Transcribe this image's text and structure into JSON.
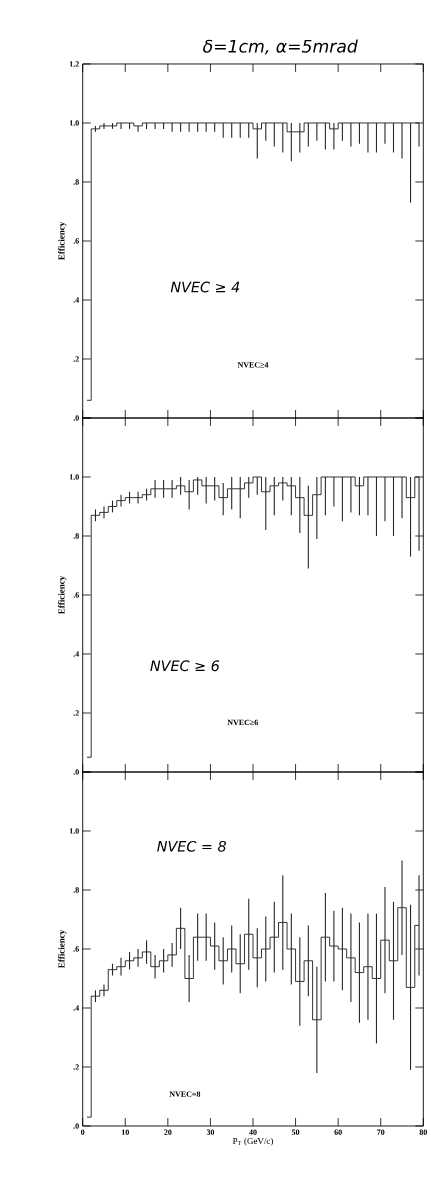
{
  "chart_data": [
    {
      "type": "step",
      "title": "δ=1cm, α=5mrad",
      "ylabel": "Efficiency",
      "annotations": [
        "NVEC ≥ 4",
        "NVEC≥4"
      ],
      "x": [
        1,
        3,
        5,
        7,
        9,
        11,
        13,
        15,
        17,
        19,
        21,
        23,
        25,
        27,
        29,
        31,
        33,
        35,
        37,
        39,
        41,
        43,
        45,
        47,
        49,
        51,
        53,
        55,
        57,
        59,
        61,
        63,
        65,
        67,
        69,
        71,
        73,
        75,
        77,
        79
      ],
      "values": [
        0.06,
        0.98,
        0.99,
        0.99,
        1.0,
        1.0,
        0.99,
        1.0,
        1.0,
        1.0,
        1.0,
        1.0,
        1.0,
        1.0,
        1.0,
        1.0,
        1.0,
        1.0,
        1.0,
        1.0,
        0.98,
        1.0,
        1.0,
        1.0,
        0.97,
        0.97,
        1.0,
        1.0,
        1.0,
        0.98,
        1.0,
        1.0,
        1.0,
        1.0,
        1.0,
        1.0,
        1.0,
        1.0,
        1.0,
        1.0
      ],
      "errors": [
        null,
        [
          0.97,
          0.99
        ],
        [
          0.98,
          1.0
        ],
        [
          0.98,
          1.0
        ],
        [
          0.98,
          1.0
        ],
        [
          0.98,
          1.0
        ],
        [
          0.97,
          0.99
        ],
        [
          0.98,
          1.0
        ],
        [
          0.98,
          1.0
        ],
        [
          0.98,
          1.0
        ],
        [
          0.97,
          1.0
        ],
        [
          0.97,
          1.0
        ],
        [
          0.97,
          1.0
        ],
        [
          0.97,
          1.0
        ],
        [
          0.97,
          1.0
        ],
        [
          0.97,
          1.0
        ],
        [
          0.95,
          1.0
        ],
        [
          0.95,
          1.0
        ],
        [
          0.95,
          1.0
        ],
        [
          0.95,
          1.0
        ],
        [
          0.88,
          1.0
        ],
        [
          0.94,
          1.0
        ],
        [
          0.92,
          1.0
        ],
        [
          0.9,
          1.0
        ],
        [
          0.87,
          1.0
        ],
        [
          0.9,
          1.0
        ],
        [
          0.92,
          1.0
        ],
        [
          0.94,
          1.0
        ],
        [
          0.91,
          1.0
        ],
        [
          0.91,
          1.0
        ],
        [
          0.94,
          1.0
        ],
        [
          0.92,
          1.0
        ],
        [
          0.93,
          1.0
        ],
        [
          0.9,
          1.0
        ],
        [
          0.9,
          1.0
        ],
        [
          0.93,
          1.0
        ],
        [
          0.9,
          1.0
        ],
        [
          0.88,
          1.0
        ],
        [
          0.73,
          1.0
        ],
        [
          0.92,
          1.0
        ]
      ],
      "xlim": [
        0,
        80
      ],
      "ylim": [
        0,
        1.2
      ],
      "xticks": [
        0,
        10,
        20,
        30,
        40,
        50,
        60,
        70,
        80
      ],
      "yticks": [
        {
          "value": 0,
          "label": ".0"
        },
        {
          "value": 0.2,
          "label": ".2"
        },
        {
          "value": 0.4,
          "label": ".4"
        },
        {
          "value": 0.6,
          "label": ".6"
        },
        {
          "value": 0.8,
          "label": ".8"
        },
        {
          "value": 1.0,
          "label": "1.0"
        },
        {
          "value": 1.2,
          "label": "1.2"
        }
      ],
      "tick_labels": "y"
    },
    {
      "type": "step",
      "ylabel": "Efficiency",
      "annotations": [
        "NVEC ≥ 6",
        "NVEC≥6"
      ],
      "x": [
        1,
        3,
        5,
        7,
        9,
        11,
        13,
        15,
        17,
        19,
        21,
        23,
        25,
        27,
        29,
        31,
        33,
        35,
        37,
        39,
        41,
        43,
        45,
        47,
        49,
        51,
        53,
        55,
        57,
        59,
        61,
        63,
        65,
        67,
        69,
        71,
        73,
        75,
        77,
        79
      ],
      "values": [
        0.05,
        0.87,
        0.88,
        0.9,
        0.92,
        0.93,
        0.93,
        0.94,
        0.96,
        0.96,
        0.96,
        0.97,
        0.95,
        0.99,
        0.97,
        0.97,
        0.93,
        0.96,
        0.96,
        0.98,
        1.0,
        0.95,
        0.97,
        0.98,
        0.97,
        0.93,
        0.87,
        0.94,
        1.0,
        1.0,
        1.0,
        1.0,
        0.97,
        1.0,
        1.0,
        1.0,
        1.0,
        1.0,
        0.93,
        1.0
      ],
      "errors": [
        null,
        [
          0.85,
          0.89
        ],
        [
          0.86,
          0.9
        ],
        [
          0.88,
          0.92
        ],
        [
          0.9,
          0.94
        ],
        [
          0.91,
          0.95
        ],
        [
          0.91,
          0.95
        ],
        [
          0.92,
          0.96
        ],
        [
          0.93,
          0.99
        ],
        [
          0.93,
          0.99
        ],
        [
          0.93,
          0.99
        ],
        [
          0.94,
          1.0
        ],
        [
          0.89,
          0.99
        ],
        [
          0.94,
          1.0
        ],
        [
          0.91,
          1.0
        ],
        [
          0.92,
          1.0
        ],
        [
          0.87,
          0.98
        ],
        [
          0.89,
          1.0
        ],
        [
          0.86,
          1.0
        ],
        [
          0.93,
          1.0
        ],
        [
          0.94,
          1.0
        ],
        [
          0.82,
          1.0
        ],
        [
          0.87,
          1.0
        ],
        [
          0.92,
          1.0
        ],
        [
          0.87,
          1.0
        ],
        [
          0.81,
          1.0
        ],
        [
          0.69,
          0.97
        ],
        [
          0.79,
          1.0
        ],
        [
          0.87,
          1.0
        ],
        [
          0.9,
          1.0
        ],
        [
          0.85,
          1.0
        ],
        [
          0.88,
          1.0
        ],
        [
          0.87,
          1.0
        ],
        [
          0.87,
          1.0
        ],
        [
          0.8,
          1.0
        ],
        [
          0.85,
          1.0
        ],
        [
          0.8,
          1.0
        ],
        [
          0.86,
          1.0
        ],
        [
          0.73,
          1.0
        ],
        [
          0.75,
          1.0
        ]
      ],
      "xlim": [
        0,
        80
      ],
      "ylim": [
        0,
        1.2
      ],
      "xticks": [
        0,
        10,
        20,
        30,
        40,
        50,
        60,
        70,
        80
      ],
      "yticks": [
        {
          "value": 0,
          "label": ".0"
        },
        {
          "value": 0.2,
          "label": ".2"
        },
        {
          "value": 0.4,
          "label": ".4"
        },
        {
          "value": 0.6,
          "label": ".6"
        },
        {
          "value": 0.8,
          "label": ".8"
        },
        {
          "value": 1.0,
          "label": "1.0"
        },
        {
          "value": 1.2,
          "label": null
        }
      ],
      "tick_labels": "y"
    },
    {
      "type": "step",
      "ylabel": "Efficiency",
      "xlabel": "P$_{T}$ (GeV/c)",
      "annotations": [
        "NVEC = 8",
        "NVEC=8"
      ],
      "x": [
        1,
        3,
        5,
        7,
        9,
        11,
        13,
        15,
        17,
        19,
        21,
        23,
        25,
        27,
        29,
        31,
        33,
        35,
        37,
        39,
        41,
        43,
        45,
        47,
        49,
        51,
        53,
        55,
        57,
        59,
        61,
        63,
        65,
        67,
        69,
        71,
        73,
        75,
        77,
        79
      ],
      "values": [
        0.03,
        0.44,
        0.46,
        0.53,
        0.54,
        0.56,
        0.57,
        0.59,
        0.54,
        0.56,
        0.58,
        0.67,
        0.5,
        0.64,
        0.64,
        0.61,
        0.56,
        0.6,
        0.55,
        0.65,
        0.57,
        0.6,
        0.64,
        0.69,
        0.6,
        0.49,
        0.56,
        0.36,
        0.64,
        0.61,
        0.6,
        0.57,
        0.52,
        0.54,
        0.5,
        0.63,
        0.56,
        0.74,
        0.47,
        0.68
      ],
      "errors": [
        null,
        0.02,
        0.02,
        0.02,
        0.03,
        0.03,
        0.03,
        0.04,
        0.04,
        0.04,
        0.04,
        0.07,
        0.08,
        0.08,
        0.08,
        0.08,
        0.08,
        0.08,
        0.1,
        0.12,
        0.1,
        0.11,
        0.12,
        0.16,
        0.12,
        0.15,
        0.12,
        0.18,
        0.15,
        0.12,
        0.14,
        0.15,
        0.17,
        0.18,
        0.22,
        0.18,
        0.2,
        0.16,
        0.28,
        0.17
      ],
      "xlim": [
        0,
        80
      ],
      "ylim": [
        0,
        1.2
      ],
      "xticks": [
        0,
        10,
        20,
        30,
        40,
        50,
        60,
        70,
        80
      ],
      "yticks": [
        {
          "value": 0,
          "label": ".0"
        },
        {
          "value": 0.2,
          "label": ".2"
        },
        {
          "value": 0.4,
          "label": ".4"
        },
        {
          "value": 0.6,
          "label": ".6"
        },
        {
          "value": 0.8,
          "label": ".8"
        },
        {
          "value": 1.0,
          "label": "1.0"
        },
        {
          "value": 1.2,
          "label": null
        }
      ]
    }
  ]
}
